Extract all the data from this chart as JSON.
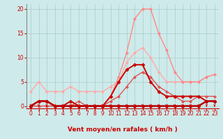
{
  "xlabel": "Vent moyen/en rafales ( km/h )",
  "background_color": "#ceeaea",
  "grid_color": "#aacccc",
  "ylim": [
    -0.5,
    21
  ],
  "xlim": [
    -0.5,
    23.5
  ],
  "yticks": [
    0,
    5,
    10,
    15,
    20
  ],
  "xticks": [
    0,
    1,
    2,
    3,
    4,
    5,
    6,
    7,
    8,
    9,
    10,
    11,
    12,
    13,
    14,
    15,
    16,
    17,
    18,
    19,
    20,
    21,
    22,
    23
  ],
  "series": [
    {
      "x": [
        0,
        1,
        2,
        3,
        4,
        5,
        6,
        7,
        8,
        9,
        10,
        11,
        12,
        13,
        14,
        15,
        16,
        17,
        18,
        19,
        20,
        21,
        22,
        23
      ],
      "y": [
        0,
        1,
        1,
        0,
        0,
        0,
        0,
        0,
        0,
        0,
        0,
        0,
        0,
        0,
        0,
        0,
        0,
        0,
        0,
        0,
        0,
        0,
        1,
        1
      ],
      "color": "#bb0000",
      "lw": 1.8,
      "marker": "D",
      "ms": 2.5,
      "zorder": 5
    },
    {
      "x": [
        0,
        1,
        2,
        3,
        4,
        5,
        6,
        7,
        8,
        9,
        10,
        11,
        12,
        13,
        14,
        15,
        16,
        17,
        18,
        19,
        20,
        21,
        22,
        23
      ],
      "y": [
        0,
        1,
        1,
        0,
        0,
        1,
        0,
        0,
        0,
        0,
        2,
        5,
        7.5,
        8.5,
        8.5,
        5,
        3,
        2,
        2,
        2,
        2,
        2,
        1,
        1
      ],
      "color": "#cc0000",
      "lw": 1.4,
      "marker": "D",
      "ms": 2.5,
      "zorder": 4
    },
    {
      "x": [
        0,
        1,
        2,
        3,
        4,
        5,
        6,
        7,
        8,
        9,
        10,
        11,
        12,
        13,
        14,
        15,
        16,
        17,
        18,
        19,
        20,
        21,
        22,
        23
      ],
      "y": [
        3,
        5,
        3,
        3,
        3,
        4,
        3,
        3,
        3,
        3,
        4,
        5,
        9,
        11,
        12,
        10,
        7,
        5,
        5,
        5,
        5,
        5,
        6,
        6.5
      ],
      "color": "#ffaaaa",
      "lw": 1.0,
      "marker": "D",
      "ms": 2.0,
      "zorder": 3
    },
    {
      "x": [
        0,
        1,
        2,
        3,
        4,
        5,
        6,
        7,
        8,
        9,
        10,
        11,
        12,
        13,
        14,
        15,
        16,
        17,
        18,
        19,
        20,
        21,
        22,
        23
      ],
      "y": [
        0,
        0,
        0,
        0,
        0,
        0,
        0,
        0,
        0,
        0,
        2,
        6,
        11,
        18,
        20,
        20,
        15,
        11.5,
        7,
        5,
        5,
        5,
        6,
        6.5
      ],
      "color": "#ff8888",
      "lw": 1.0,
      "marker": "D",
      "ms": 2.0,
      "zorder": 3
    },
    {
      "x": [
        0,
        1,
        2,
        3,
        4,
        5,
        6,
        7,
        8,
        9,
        10,
        11,
        12,
        13,
        14,
        15,
        16,
        17,
        18,
        19,
        20,
        21,
        22,
        23
      ],
      "y": [
        0,
        0,
        0,
        0,
        0,
        0,
        1,
        0,
        0,
        0,
        1,
        2,
        4,
        6,
        7,
        6,
        4,
        3,
        2,
        1,
        1,
        2,
        2,
        2
      ],
      "color": "#dd5555",
      "lw": 1.0,
      "marker": "D",
      "ms": 2.0,
      "zorder": 3
    }
  ],
  "arrow_color": "#cc0000",
  "xlabel_color": "#cc0000",
  "tick_color": "#cc0000",
  "tick_fontsize": 5.5,
  "xlabel_fontsize": 6.5
}
